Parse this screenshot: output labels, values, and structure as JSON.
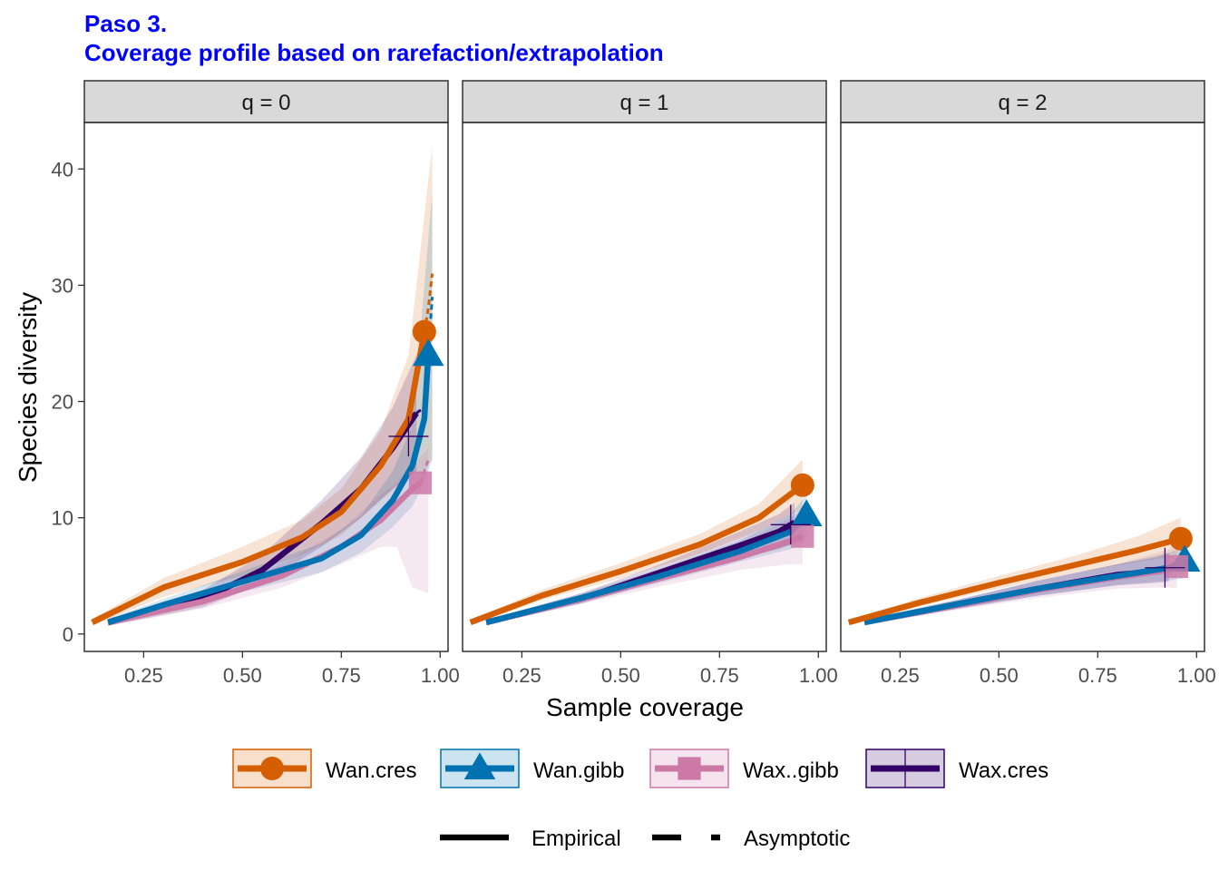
{
  "title": "Paso 3.",
  "subtitle": "Coverage profile based on rarefaction/extrapolation",
  "colors": {
    "title": "#0000ff",
    "strip_bg": "#d9d9d9",
    "Wan.cres": "#d55e00",
    "Wan.gibb": "#0072b2",
    "Wax..gibb": "#cc79a7",
    "Wax.cres": "#330066"
  },
  "legend": {
    "series": [
      {
        "name": "Wan.cres",
        "shape": "circle"
      },
      {
        "name": "Wan.gibb",
        "shape": "triangle"
      },
      {
        "name": "Wax..gibb",
        "shape": "square"
      },
      {
        "name": "Wax.cres",
        "shape": "cross"
      }
    ],
    "linetypes": [
      {
        "name": "Empirical",
        "style": "solid"
      },
      {
        "name": "Asymptotic",
        "style": "dashed"
      }
    ]
  },
  "chart_data": {
    "type": "line",
    "xlabel": "Sample coverage",
    "ylabel": "Species diversity",
    "xlim": [
      0.1,
      1.02
    ],
    "ylim": [
      -1.5,
      44
    ],
    "x_ticks": [
      0.25,
      0.5,
      0.75,
      1.0
    ],
    "x_tick_labels": [
      "0.25",
      "0.50",
      "0.75",
      "1.00"
    ],
    "y_ticks": [
      0,
      10,
      20,
      30,
      40
    ],
    "y_tick_labels": [
      "0",
      "10",
      "20",
      "30",
      "40"
    ],
    "grid": false,
    "legend_position": "bottom",
    "panels": [
      {
        "label": "q = 0",
        "series": [
          {
            "name": "Wan.cres",
            "line": [
              [
                0.12,
                1
              ],
              [
                0.3,
                4
              ],
              [
                0.5,
                6.2
              ],
              [
                0.65,
                8.3
              ],
              [
                0.75,
                10.5
              ],
              [
                0.85,
                14.5
              ],
              [
                0.92,
                18.5
              ],
              [
                0.96,
                26
              ]
            ],
            "ext": [
              [
                0.96,
                26
              ],
              [
                0.97,
                28
              ],
              [
                0.98,
                31
              ]
            ],
            "ribbon": [
              [
                0.12,
                0.7,
                1.3
              ],
              [
                0.3,
                3.2,
                4.8
              ],
              [
                0.5,
                5,
                7.5
              ],
              [
                0.65,
                6.8,
                9.8
              ],
              [
                0.75,
                8.5,
                12.5
              ],
              [
                0.85,
                11.5,
                17.5
              ],
              [
                0.92,
                13.5,
                24
              ],
              [
                0.96,
                14,
                36
              ],
              [
                0.98,
                15,
                42
              ]
            ],
            "point": [
              0.96,
              26
            ]
          },
          {
            "name": "Wan.gibb",
            "line": [
              [
                0.16,
                1
              ],
              [
                0.3,
                2.5
              ],
              [
                0.5,
                4.5
              ],
              [
                0.7,
                6.5
              ],
              [
                0.8,
                8.5
              ],
              [
                0.88,
                11.5
              ],
              [
                0.93,
                14.5
              ],
              [
                0.96,
                18.5
              ],
              [
                0.97,
                24
              ]
            ],
            "ext": [
              [
                0.97,
                24
              ],
              [
                0.98,
                29
              ]
            ],
            "ribbon": [
              [
                0.16,
                0.7,
                1.3
              ],
              [
                0.3,
                2,
                3
              ],
              [
                0.5,
                3.6,
                5.4
              ],
              [
                0.7,
                5.3,
                7.8
              ],
              [
                0.8,
                7,
                10.2
              ],
              [
                0.88,
                9.2,
                14
              ],
              [
                0.93,
                11,
                18
              ],
              [
                0.96,
                13,
                30
              ],
              [
                0.98,
                15,
                38
              ]
            ],
            "point": [
              0.97,
              24
            ]
          },
          {
            "name": "Wax..gibb",
            "line": [
              [
                0.16,
                1
              ],
              [
                0.4,
                2.8
              ],
              [
                0.6,
                5
              ],
              [
                0.75,
                7.5
              ],
              [
                0.85,
                9.8
              ],
              [
                0.93,
                12.5
              ],
              [
                0.95,
                13
              ]
            ],
            "ext": [
              [
                0.95,
                13
              ],
              [
                0.97,
                15
              ]
            ],
            "ribbon": [
              [
                0.16,
                0.7,
                1.3
              ],
              [
                0.4,
                2.2,
                3.4
              ],
              [
                0.6,
                4,
                6
              ],
              [
                0.75,
                6,
                9
              ],
              [
                0.85,
                7.5,
                12
              ],
              [
                0.89,
                7.5,
                13
              ],
              [
                0.93,
                4,
                14.5
              ],
              [
                0.97,
                3.5,
                16
              ]
            ],
            "point": [
              0.95,
              13
            ]
          },
          {
            "name": "Wax.cres",
            "line": [
              [
                0.16,
                1
              ],
              [
                0.4,
                3
              ],
              [
                0.55,
                5.5
              ],
              [
                0.7,
                9.5
              ],
              [
                0.8,
                12.5
              ],
              [
                0.88,
                16
              ],
              [
                0.94,
                19
              ]
            ],
            "ext": [
              [
                0.94,
                19
              ],
              [
                0.96,
                19.5
              ]
            ],
            "ribbon": [
              [
                0.16,
                0.7,
                1.3
              ],
              [
                0.4,
                2.3,
                3.8
              ],
              [
                0.55,
                4.3,
                6.8
              ],
              [
                0.7,
                7.5,
                11.5
              ],
              [
                0.8,
                10,
                15.2
              ],
              [
                0.88,
                12.5,
                19.5
              ],
              [
                0.94,
                14,
                24
              ]
            ],
            "point": [
              0.92,
              17
            ]
          }
        ]
      },
      {
        "label": "q = 1",
        "series": [
          {
            "name": "Wan.cres",
            "line": [
              [
                0.12,
                1
              ],
              [
                0.3,
                3.3
              ],
              [
                0.5,
                5.4
              ],
              [
                0.7,
                7.7
              ],
              [
                0.85,
                10
              ],
              [
                0.96,
                12.8
              ]
            ],
            "ext": [],
            "ribbon": [
              [
                0.12,
                0.8,
                1.2
              ],
              [
                0.3,
                2.9,
                3.8
              ],
              [
                0.5,
                4.8,
                6.1
              ],
              [
                0.7,
                6.9,
                8.6
              ],
              [
                0.85,
                8.9,
                11.2
              ],
              [
                0.96,
                10.8,
                15
              ]
            ],
            "point": [
              0.96,
              12.8
            ]
          },
          {
            "name": "Wan.gibb",
            "line": [
              [
                0.16,
                1
              ],
              [
                0.4,
                3.1
              ],
              [
                0.6,
                5
              ],
              [
                0.8,
                7.1
              ],
              [
                0.93,
                8.8
              ],
              [
                0.97,
                10.2
              ]
            ],
            "ext": [],
            "ribbon": [
              [
                0.16,
                0.8,
                1.2
              ],
              [
                0.4,
                2.7,
                3.5
              ],
              [
                0.6,
                4.4,
                5.6
              ],
              [
                0.8,
                6.2,
                8
              ],
              [
                0.93,
                7.3,
                10.3
              ],
              [
                0.97,
                8,
                12
              ]
            ],
            "point": [
              0.97,
              10.2
            ]
          },
          {
            "name": "Wax..gibb",
            "line": [
              [
                0.16,
                1
              ],
              [
                0.4,
                3
              ],
              [
                0.6,
                4.8
              ],
              [
                0.8,
                6.6
              ],
              [
                0.93,
                8
              ],
              [
                0.96,
                8.4
              ]
            ],
            "ext": [],
            "ribbon": [
              [
                0.16,
                0.8,
                1.2
              ],
              [
                0.4,
                2.6,
                3.4
              ],
              [
                0.6,
                4.1,
                5.5
              ],
              [
                0.8,
                5.5,
                7.7
              ],
              [
                0.93,
                6,
                10
              ],
              [
                0.96,
                6,
                11
              ]
            ],
            "point": [
              0.96,
              8.4
            ]
          },
          {
            "name": "Wax.cres",
            "line": [
              [
                0.16,
                1
              ],
              [
                0.4,
                3
              ],
              [
                0.6,
                5.3
              ],
              [
                0.8,
                7.6
              ],
              [
                0.9,
                8.8
              ],
              [
                0.94,
                9.6
              ]
            ],
            "ext": [],
            "ribbon": [
              [
                0.16,
                0.8,
                1.2
              ],
              [
                0.4,
                2.6,
                3.5
              ],
              [
                0.6,
                4.6,
                6
              ],
              [
                0.8,
                6.5,
                8.8
              ],
              [
                0.9,
                7.3,
                10.3
              ],
              [
                0.94,
                7.8,
                11.3
              ]
            ],
            "point": [
              0.93,
              9.4
            ]
          }
        ]
      },
      {
        "label": "q = 2",
        "series": [
          {
            "name": "Wan.cres",
            "line": [
              [
                0.12,
                1
              ],
              [
                0.3,
                2.7
              ],
              [
                0.5,
                4.4
              ],
              [
                0.7,
                6
              ],
              [
                0.85,
                7.2
              ],
              [
                0.96,
                8.2
              ]
            ],
            "ext": [],
            "ribbon": [
              [
                0.12,
                0.8,
                1.2
              ],
              [
                0.3,
                2.4,
                3.1
              ],
              [
                0.5,
                3.9,
                5
              ],
              [
                0.7,
                5.3,
                6.8
              ],
              [
                0.85,
                6.2,
                8.4
              ],
              [
                0.96,
                6.8,
                10
              ]
            ],
            "point": [
              0.96,
              8.2
            ]
          },
          {
            "name": "Wan.gibb",
            "line": [
              [
                0.16,
                1
              ],
              [
                0.4,
                2.6
              ],
              [
                0.6,
                3.9
              ],
              [
                0.8,
                5
              ],
              [
                0.93,
                5.7
              ],
              [
                0.97,
                6.3
              ]
            ],
            "ext": [],
            "ribbon": [
              [
                0.16,
                0.8,
                1.2
              ],
              [
                0.4,
                2.2,
                3
              ],
              [
                0.6,
                3.3,
                4.6
              ],
              [
                0.8,
                4.2,
                6
              ],
              [
                0.93,
                4.6,
                7
              ],
              [
                0.97,
                4.8,
                7.5
              ]
            ],
            "point": [
              0.97,
              6.3
            ]
          },
          {
            "name": "Wax..gibb",
            "line": [
              [
                0.16,
                1
              ],
              [
                0.4,
                2.5
              ],
              [
                0.6,
                3.8
              ],
              [
                0.8,
                4.9
              ],
              [
                0.93,
                5.5
              ],
              [
                0.95,
                5.8
              ]
            ],
            "ext": [],
            "ribbon": [
              [
                0.16,
                0.8,
                1.2
              ],
              [
                0.4,
                2.1,
                2.9
              ],
              [
                0.6,
                3.1,
                4.6
              ],
              [
                0.8,
                3.9,
                6
              ],
              [
                0.93,
                4,
                7.3
              ],
              [
                0.95,
                3.9,
                7.8
              ]
            ],
            "point": [
              0.95,
              5.8
            ]
          },
          {
            "name": "Wax.cres",
            "line": [
              [
                0.16,
                1
              ],
              [
                0.4,
                2.6
              ],
              [
                0.6,
                3.9
              ],
              [
                0.8,
                5.1
              ],
              [
                0.9,
                5.4
              ],
              [
                0.93,
                5.7
              ]
            ],
            "ext": [],
            "ribbon": [
              [
                0.16,
                0.8,
                1.2
              ],
              [
                0.4,
                2.2,
                3
              ],
              [
                0.6,
                3.3,
                4.6
              ],
              [
                0.8,
                4.2,
                6
              ],
              [
                0.9,
                4.4,
                6.6
              ],
              [
                0.93,
                4.5,
                7
              ]
            ],
            "point": [
              0.92,
              5.7
            ]
          }
        ]
      }
    ]
  }
}
